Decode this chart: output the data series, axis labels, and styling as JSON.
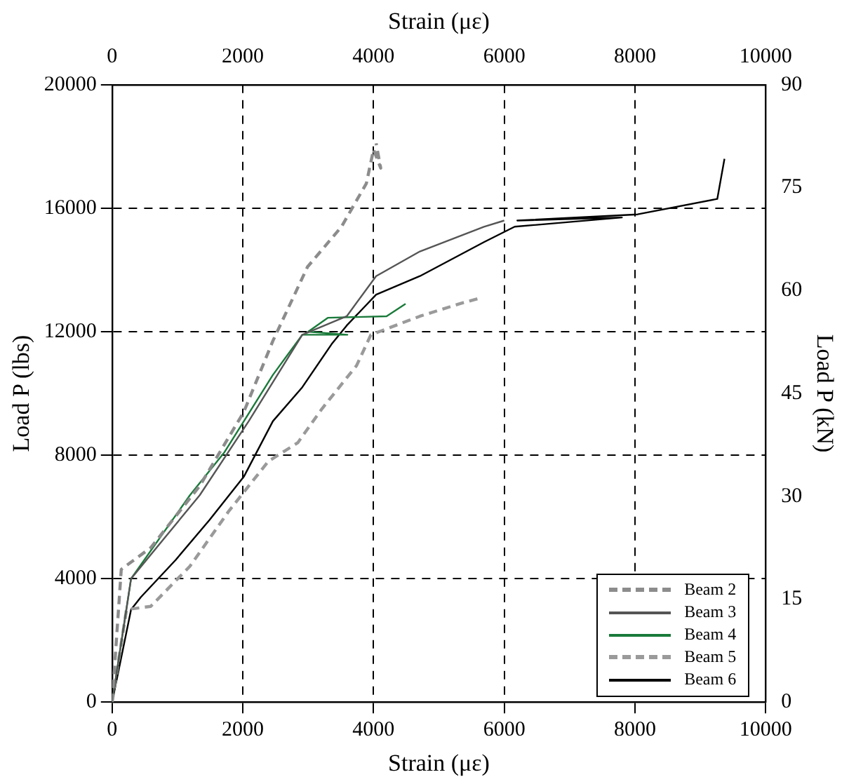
{
  "chart_data": {
    "type": "line",
    "xlabel": "Strain (με)",
    "x2label": "Strain (με)",
    "ylabel": "Load P (lbs)",
    "y2label": "Load P (kN)",
    "xlim": [
      0,
      10000
    ],
    "xticks": [
      0,
      2000,
      4000,
      6000,
      8000,
      10000
    ],
    "x2lim": [
      0,
      10000
    ],
    "x2ticks": [
      0,
      2000,
      4000,
      6000,
      8000,
      10000
    ],
    "ylim": [
      0,
      20000
    ],
    "yticks": [
      0,
      4000,
      8000,
      12000,
      16000,
      20000
    ],
    "y2lim": [
      0,
      90
    ],
    "y2ticks": [
      0,
      15,
      30,
      45,
      60,
      75,
      90
    ],
    "grid": true,
    "legend": "bottom right",
    "marker": "none",
    "series": [
      {
        "name": "Beam 2",
        "color": "#8c8c8c",
        "line_style": "dashed",
        "x": [
          0,
          140,
          590,
          1340,
          2015,
          2460,
          2990,
          3510,
          3890,
          4000,
          4110,
          4040
        ],
        "values": [
          0,
          4300,
          5000,
          7000,
          9400,
          11700,
          14100,
          15400,
          16800,
          17900,
          17300,
          18100
        ]
      },
      {
        "name": "Beam 3",
        "color": "#555555",
        "line_style": "solid",
        "x": [
          0,
          290,
          1340,
          2090,
          2910,
          3590,
          4040,
          4710,
          5690,
          6000
        ],
        "values": [
          0,
          4000,
          6700,
          9100,
          11900,
          12500,
          13800,
          14600,
          15400,
          15600
        ]
      },
      {
        "name": "Beam 4",
        "color": "#1a7a3a",
        "line_style": "solid",
        "x": [
          0,
          290,
          1190,
          1720,
          2460,
          2910,
          3600,
          3000,
          3300,
          4200,
          4490
        ],
        "values": [
          0,
          4000,
          6700,
          8100,
          10600,
          11900,
          11900,
          12000,
          12450,
          12500,
          12900
        ]
      },
      {
        "name": "Beam 5",
        "color": "#9a9a9a",
        "line_style": "dashed",
        "x": [
          0,
          220,
          590,
          1190,
          1790,
          2390,
          2840,
          3210,
          3740,
          3960,
          4710,
          5310,
          5650
        ],
        "values": [
          0,
          3000,
          3100,
          4400,
          6200,
          7800,
          8400,
          9500,
          10900,
          11900,
          12500,
          12900,
          13100
        ]
      },
      {
        "name": "Beam 6",
        "color": "#000000",
        "line_style": "solid",
        "x": [
          0,
          290,
          440,
          970,
          1490,
          2015,
          2460,
          2910,
          3360,
          3590,
          4040,
          4710,
          5690,
          6160,
          7800,
          6200,
          8040,
          9260,
          9370
        ],
        "values": [
          0,
          3000,
          3400,
          4600,
          5900,
          7300,
          9100,
          10200,
          11600,
          12200,
          13200,
          13800,
          14900,
          15400,
          15700,
          15600,
          15800,
          16300,
          17600
        ]
      }
    ]
  }
}
